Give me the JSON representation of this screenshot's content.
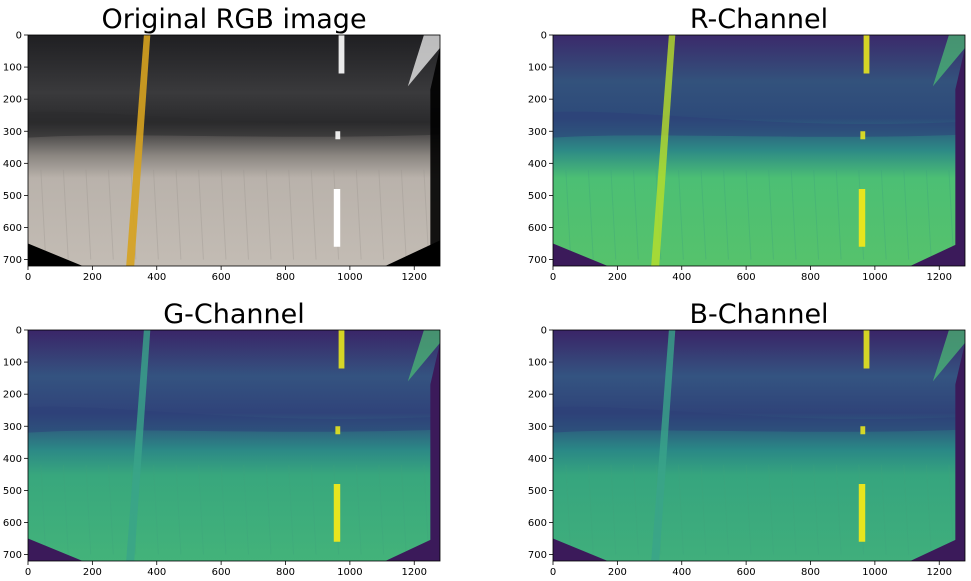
{
  "panels": [
    {
      "title": "Original RGB image",
      "image": "rgb-road-photo",
      "xticks": [
        "0",
        "200",
        "400",
        "600",
        "800",
        "1000",
        "1200"
      ],
      "yticks": [
        "0",
        "100",
        "200",
        "300",
        "400",
        "500",
        "600",
        "700"
      ]
    },
    {
      "title": "R-Channel",
      "image": "r-channel-viridis",
      "xticks": [
        "0",
        "200",
        "400",
        "600",
        "800",
        "1000",
        "1200"
      ],
      "yticks": [
        "0",
        "100",
        "200",
        "300",
        "400",
        "500",
        "600",
        "700"
      ]
    },
    {
      "title": "G-Channel",
      "image": "g-channel-viridis",
      "xticks": [
        "0",
        "200",
        "400",
        "600",
        "800",
        "1000",
        "1200"
      ],
      "yticks": [
        "0",
        "100",
        "200",
        "300",
        "400",
        "500",
        "600",
        "700"
      ]
    },
    {
      "title": "B-Channel",
      "image": "b-channel-viridis",
      "xticks": [
        "0",
        "200",
        "400",
        "600",
        "800",
        "1000",
        "1200"
      ],
      "yticks": [
        "0",
        "100",
        "200",
        "300",
        "400",
        "500",
        "600",
        "700"
      ]
    }
  ],
  "colors": {
    "viridis_dark": "#3b1a5a",
    "viridis_blue": "#34557f",
    "viridis_teal": "#2e8b8a",
    "viridis_green": "#4cbf74",
    "viridis_yellow": "#e8e51e",
    "asphalt": "#2a2a2a",
    "concrete": "#b7b0aa",
    "yellow_line": "#d6a21f"
  }
}
